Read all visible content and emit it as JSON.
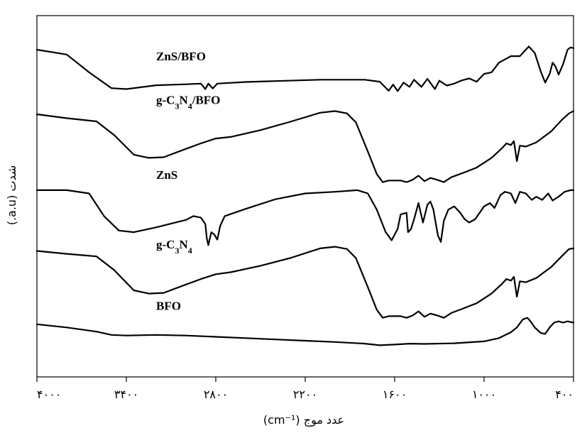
{
  "chart_data": {
    "type": "line",
    "xlabel": "عدد موج (cm⁻¹)",
    "ylabel": "شدت (a.u.)",
    "xlim": [
      4000,
      400
    ],
    "ylim": [
      0,
      1
    ],
    "x_ticks": [
      {
        "value": 4000,
        "label": "۴۰۰۰"
      },
      {
        "value": 3400,
        "label": "۳۴۰۰"
      },
      {
        "value": 2800,
        "label": "۲۸۰۰"
      },
      {
        "value": 2200,
        "label": "۲۲۰۰"
      },
      {
        "value": 1600,
        "label": "۱۶۰۰"
      },
      {
        "value": 1000,
        "label": "۱۰۰۰"
      },
      {
        "value": 400,
        "label": "۴۰۰"
      }
    ],
    "series": [
      {
        "name": "ZnS/BFO",
        "label_pos": [
          3200,
          0.912
        ],
        "points": [
          [
            4000,
            0.945
          ],
          [
            3800,
            0.93
          ],
          [
            3650,
            0.875
          ],
          [
            3500,
            0.826
          ],
          [
            3400,
            0.823
          ],
          [
            3200,
            0.835
          ],
          [
            3000,
            0.838
          ],
          [
            2900,
            0.84
          ],
          [
            2870,
            0.823
          ],
          [
            2850,
            0.84
          ],
          [
            2820,
            0.825
          ],
          [
            2790,
            0.84
          ],
          [
            2600,
            0.845
          ],
          [
            2400,
            0.848
          ],
          [
            2100,
            0.852
          ],
          [
            1800,
            0.852
          ],
          [
            1700,
            0.846
          ],
          [
            1640,
            0.818
          ],
          [
            1610,
            0.837
          ],
          [
            1580,
            0.817
          ],
          [
            1540,
            0.843
          ],
          [
            1500,
            0.83
          ],
          [
            1470,
            0.852
          ],
          [
            1420,
            0.83
          ],
          [
            1380,
            0.855
          ],
          [
            1330,
            0.823
          ],
          [
            1300,
            0.849
          ],
          [
            1250,
            0.834
          ],
          [
            1200,
            0.84
          ],
          [
            1150,
            0.85
          ],
          [
            1100,
            0.856
          ],
          [
            1050,
            0.846
          ],
          [
            1000,
            0.87
          ],
          [
            950,
            0.875
          ],
          [
            900,
            0.905
          ],
          [
            820,
            0.925
          ],
          [
            760,
            0.925
          ],
          [
            700,
            0.955
          ],
          [
            660,
            0.935
          ],
          [
            620,
            0.878
          ],
          [
            590,
            0.843
          ],
          [
            560,
            0.87
          ],
          [
            540,
            0.905
          ],
          [
            520,
            0.892
          ],
          [
            500,
            0.868
          ],
          [
            470,
            0.9
          ],
          [
            440,
            0.945
          ],
          [
            420,
            0.952
          ],
          [
            400,
            0.95
          ]
        ]
      },
      {
        "name": "g-C3N4/BFO",
        "name_parts": [
          "g-C",
          "3",
          "N",
          "4",
          "/BFO"
        ],
        "label_pos": [
          3200,
          0.777
        ],
        "points": [
          [
            4000,
            0.745
          ],
          [
            3800,
            0.733
          ],
          [
            3600,
            0.723
          ],
          [
            3480,
            0.68
          ],
          [
            3350,
            0.62
          ],
          [
            3250,
            0.61
          ],
          [
            3150,
            0.612
          ],
          [
            3000,
            0.638
          ],
          [
            2900,
            0.655
          ],
          [
            2800,
            0.67
          ],
          [
            2700,
            0.675
          ],
          [
            2500,
            0.696
          ],
          [
            2300,
            0.722
          ],
          [
            2100,
            0.75
          ],
          [
            2000,
            0.755
          ],
          [
            1920,
            0.748
          ],
          [
            1860,
            0.72
          ],
          [
            1780,
            0.63
          ],
          [
            1720,
            0.56
          ],
          [
            1680,
            0.535
          ],
          [
            1640,
            0.54
          ],
          [
            1600,
            0.54
          ],
          [
            1560,
            0.54
          ],
          [
            1520,
            0.535
          ],
          [
            1480,
            0.542
          ],
          [
            1440,
            0.555
          ],
          [
            1400,
            0.538
          ],
          [
            1360,
            0.548
          ],
          [
            1320,
            0.543
          ],
          [
            1270,
            0.535
          ],
          [
            1220,
            0.55
          ],
          [
            1150,
            0.562
          ],
          [
            1050,
            0.58
          ],
          [
            950,
            0.61
          ],
          [
            880,
            0.64
          ],
          [
            850,
            0.655
          ],
          [
            820,
            0.65
          ],
          [
            800,
            0.662
          ],
          [
            780,
            0.6
          ],
          [
            760,
            0.648
          ],
          [
            720,
            0.645
          ],
          [
            650,
            0.658
          ],
          [
            550,
            0.692
          ],
          [
            480,
            0.727
          ],
          [
            430,
            0.748
          ],
          [
            400,
            0.755
          ]
        ]
      },
      {
        "name": "ZnS",
        "label_pos": [
          3200,
          0.545
        ],
        "points": [
          [
            4000,
            0.51
          ],
          [
            3800,
            0.51
          ],
          [
            3650,
            0.5
          ],
          [
            3550,
            0.43
          ],
          [
            3450,
            0.385
          ],
          [
            3350,
            0.38
          ],
          [
            3200,
            0.395
          ],
          [
            3000,
            0.418
          ],
          [
            2950,
            0.43
          ],
          [
            2900,
            0.425
          ],
          [
            2870,
            0.405
          ],
          [
            2860,
            0.36
          ],
          [
            2850,
            0.34
          ],
          [
            2830,
            0.38
          ],
          [
            2810,
            0.373
          ],
          [
            2790,
            0.357
          ],
          [
            2770,
            0.4
          ],
          [
            2740,
            0.43
          ],
          [
            2600,
            0.452
          ],
          [
            2400,
            0.482
          ],
          [
            2200,
            0.5
          ],
          [
            2000,
            0.505
          ],
          [
            1850,
            0.51
          ],
          [
            1780,
            0.5
          ],
          [
            1720,
            0.45
          ],
          [
            1660,
            0.38
          ],
          [
            1620,
            0.355
          ],
          [
            1580,
            0.39
          ],
          [
            1560,
            0.435
          ],
          [
            1520,
            0.44
          ],
          [
            1510,
            0.38
          ],
          [
            1490,
            0.39
          ],
          [
            1470,
            0.42
          ],
          [
            1440,
            0.47
          ],
          [
            1410,
            0.41
          ],
          [
            1380,
            0.465
          ],
          [
            1360,
            0.475
          ],
          [
            1340,
            0.45
          ],
          [
            1310,
            0.37
          ],
          [
            1290,
            0.35
          ],
          [
            1270,
            0.415
          ],
          [
            1240,
            0.45
          ],
          [
            1200,
            0.46
          ],
          [
            1160,
            0.44
          ],
          [
            1130,
            0.42
          ],
          [
            1100,
            0.41
          ],
          [
            1060,
            0.42
          ],
          [
            1000,
            0.46
          ],
          [
            960,
            0.47
          ],
          [
            930,
            0.455
          ],
          [
            890,
            0.495
          ],
          [
            860,
            0.505
          ],
          [
            820,
            0.5
          ],
          [
            790,
            0.47
          ],
          [
            760,
            0.505
          ],
          [
            720,
            0.5
          ],
          [
            680,
            0.48
          ],
          [
            650,
            0.49
          ],
          [
            610,
            0.48
          ],
          [
            570,
            0.5
          ],
          [
            540,
            0.478
          ],
          [
            500,
            0.49
          ],
          [
            460,
            0.505
          ],
          [
            420,
            0.51
          ],
          [
            400,
            0.51
          ]
        ]
      },
      {
        "name": "g-C3N4",
        "name_parts": [
          "g-C",
          "3",
          "N",
          "4",
          ""
        ],
        "label_pos": [
          3200,
          0.33
        ],
        "points": [
          [
            4000,
            0.322
          ],
          [
            3800,
            0.313
          ],
          [
            3600,
            0.305
          ],
          [
            3480,
            0.262
          ],
          [
            3350,
            0.2
          ],
          [
            3250,
            0.19
          ],
          [
            3150,
            0.192
          ],
          [
            3000,
            0.218
          ],
          [
            2900,
            0.235
          ],
          [
            2800,
            0.25
          ],
          [
            2700,
            0.256
          ],
          [
            2500,
            0.276
          ],
          [
            2300,
            0.3
          ],
          [
            2100,
            0.33
          ],
          [
            2000,
            0.335
          ],
          [
            1920,
            0.328
          ],
          [
            1860,
            0.3
          ],
          [
            1780,
            0.21
          ],
          [
            1720,
            0.14
          ],
          [
            1680,
            0.115
          ],
          [
            1640,
            0.12
          ],
          [
            1600,
            0.12
          ],
          [
            1560,
            0.12
          ],
          [
            1520,
            0.115
          ],
          [
            1480,
            0.122
          ],
          [
            1440,
            0.135
          ],
          [
            1400,
            0.118
          ],
          [
            1360,
            0.128
          ],
          [
            1320,
            0.123
          ],
          [
            1270,
            0.115
          ],
          [
            1220,
            0.13
          ],
          [
            1150,
            0.142
          ],
          [
            1050,
            0.16
          ],
          [
            950,
            0.19
          ],
          [
            880,
            0.22
          ],
          [
            850,
            0.235
          ],
          [
            820,
            0.23
          ],
          [
            800,
            0.242
          ],
          [
            780,
            0.18
          ],
          [
            760,
            0.228
          ],
          [
            720,
            0.225
          ],
          [
            650,
            0.238
          ],
          [
            550,
            0.272
          ],
          [
            480,
            0.305
          ],
          [
            430,
            0.328
          ],
          [
            400,
            0.33
          ]
        ]
      },
      {
        "name": "BFO",
        "label_pos": [
          3200,
          0.14
        ],
        "points": [
          [
            4000,
            0.095
          ],
          [
            3800,
            0.085
          ],
          [
            3600,
            0.072
          ],
          [
            3500,
            0.062
          ],
          [
            3400,
            0.06
          ],
          [
            3200,
            0.062
          ],
          [
            3000,
            0.06
          ],
          [
            2800,
            0.056
          ],
          [
            2600,
            0.052
          ],
          [
            2400,
            0.048
          ],
          [
            2200,
            0.044
          ],
          [
            2000,
            0.04
          ],
          [
            1800,
            0.035
          ],
          [
            1700,
            0.03
          ],
          [
            1600,
            0.032
          ],
          [
            1500,
            0.035
          ],
          [
            1400,
            0.034
          ],
          [
            1200,
            0.036
          ],
          [
            1000,
            0.042
          ],
          [
            900,
            0.052
          ],
          [
            820,
            0.07
          ],
          [
            780,
            0.085
          ],
          [
            740,
            0.11
          ],
          [
            710,
            0.115
          ],
          [
            690,
            0.105
          ],
          [
            660,
            0.085
          ],
          [
            620,
            0.068
          ],
          [
            590,
            0.065
          ],
          [
            560,
            0.085
          ],
          [
            530,
            0.1
          ],
          [
            500,
            0.104
          ],
          [
            470,
            0.1
          ],
          [
            440,
            0.104
          ],
          [
            400,
            0.1
          ]
        ]
      }
    ]
  }
}
